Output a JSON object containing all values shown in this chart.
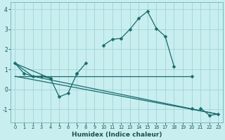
{
  "title": "",
  "xlabel": "Humidex (Indice chaleur)",
  "bg_color": "#c8eef0",
  "grid_color": "#a0d4d8",
  "line_color": "#1a6b6b",
  "xlim": [
    -0.5,
    23.5
  ],
  "ylim": [
    -1.65,
    4.35
  ],
  "yticks": [
    -1,
    0,
    1,
    2,
    3,
    4
  ],
  "xticks": [
    0,
    1,
    2,
    3,
    4,
    5,
    6,
    7,
    8,
    9,
    10,
    11,
    12,
    13,
    14,
    15,
    16,
    17,
    18,
    19,
    20,
    21,
    22,
    23
  ],
  "main_line": {
    "segments": [
      {
        "x": [
          0,
          1,
          2,
          3,
          4
        ],
        "y": [
          1.3,
          0.8,
          0.65,
          0.65,
          0.55
        ]
      },
      {
        "x": [
          4,
          5,
          6,
          7
        ],
        "y": [
          0.55,
          -0.38,
          -0.2,
          0.78
        ]
      },
      {
        "x": [
          7,
          8
        ],
        "y": [
          0.78,
          1.3
        ]
      },
      {
        "x": [
          10,
          11,
          12,
          13,
          14,
          15,
          16,
          17,
          18
        ],
        "y": [
          2.2,
          2.5,
          2.55,
          3.0,
          3.55,
          3.9,
          3.05,
          2.65,
          1.15
        ]
      },
      {
        "x": [
          21,
          22,
          23
        ],
        "y": [
          -0.95,
          -1.3,
          -1.25
        ]
      }
    ]
  },
  "flat_line": {
    "x": [
      0,
      20
    ],
    "y": [
      0.65,
      0.65
    ]
  },
  "diag_line1": {
    "x": [
      0,
      23
    ],
    "y": [
      0.65,
      -1.25
    ]
  },
  "diag_line2": {
    "x": [
      2,
      23
    ],
    "y": [
      0.65,
      -1.25
    ]
  },
  "extra_markers": [
    {
      "x": [
        20
      ],
      "y": [
        0.65
      ]
    },
    {
      "x": [
        20
      ],
      "y": [
        -0.95
      ]
    }
  ],
  "connector1": {
    "x": [
      0,
      4
    ],
    "y": [
      1.3,
      0.55
    ]
  },
  "connector2": {
    "x": [
      0,
      2
    ],
    "y": [
      1.3,
      0.65
    ]
  }
}
